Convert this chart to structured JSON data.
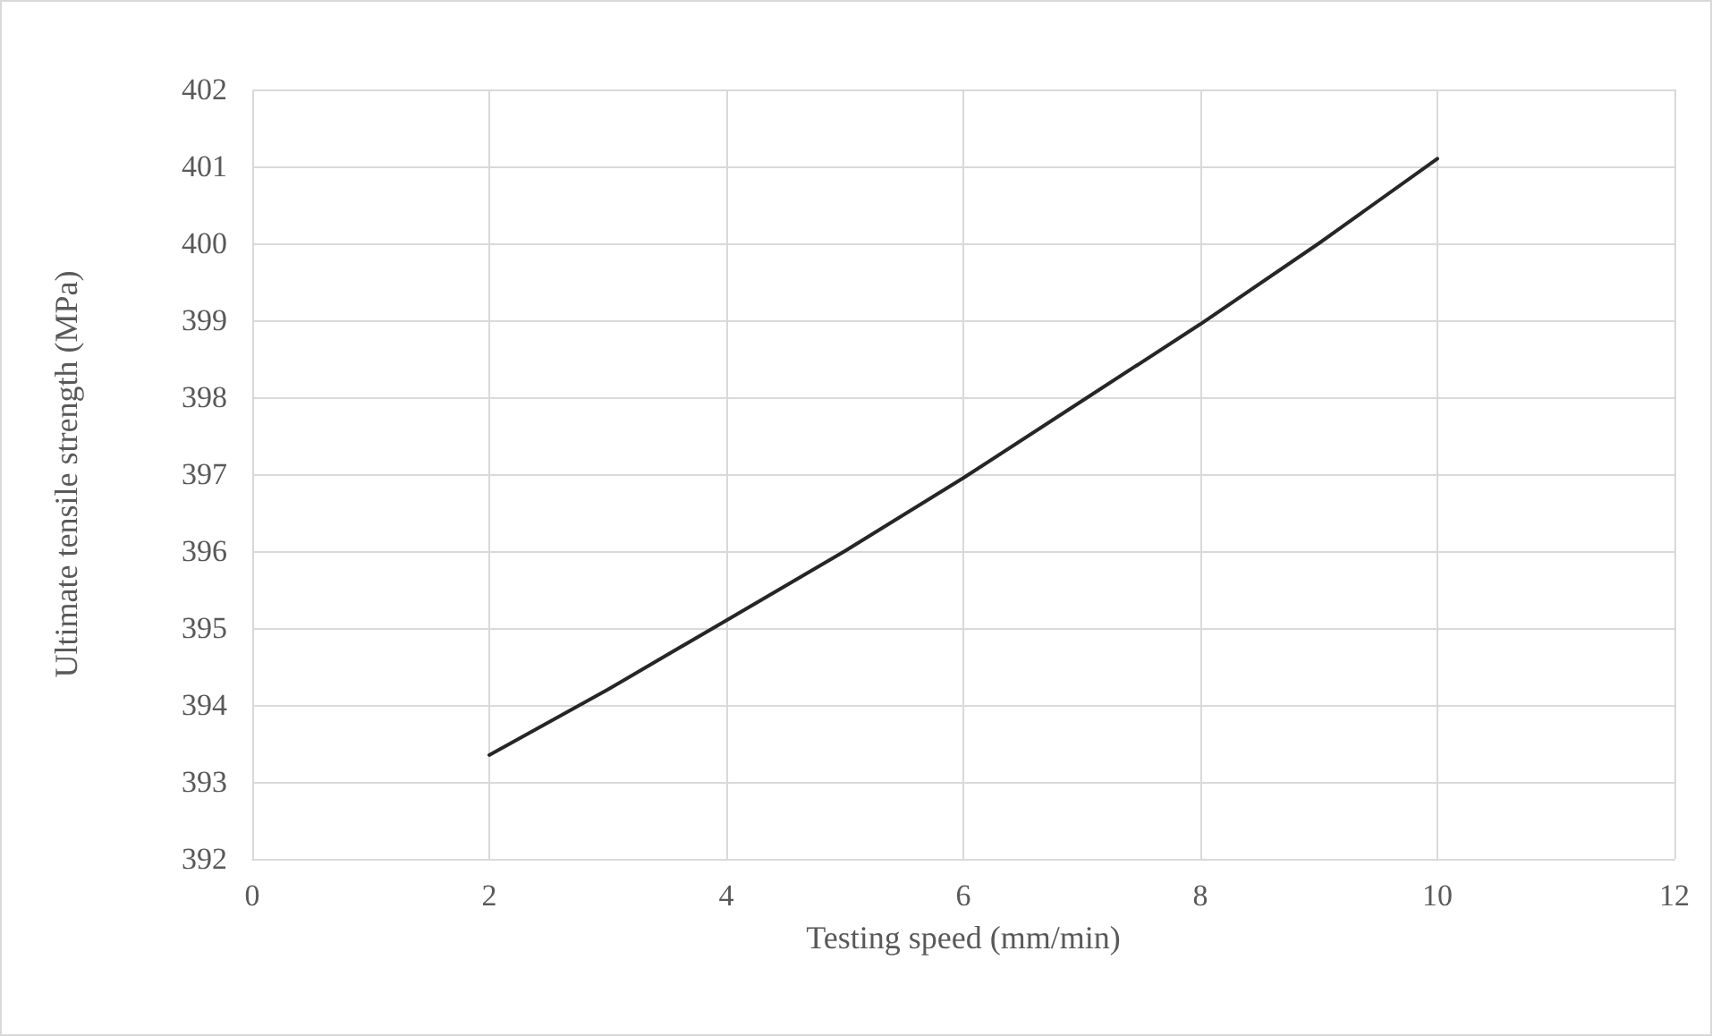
{
  "chart_data": {
    "type": "line",
    "xlabel": "Testing speed (mm/min)",
    "ylabel": "Ultimate tensile strength (MPa)",
    "x": [
      2,
      3,
      4,
      5,
      6,
      7,
      8,
      9,
      10
    ],
    "series": [
      {
        "color": "#262626",
        "values": [
          393.35,
          394.2,
          395.1,
          396.0,
          396.95,
          397.95,
          398.95,
          400.0,
          401.1
        ]
      }
    ],
    "xlim": [
      0,
      12
    ],
    "xticks": [
      0,
      2,
      4,
      6,
      8,
      10,
      12
    ],
    "ylim": [
      392,
      402
    ],
    "yticks": [
      392,
      393,
      394,
      395,
      396,
      397,
      398,
      399,
      400,
      401,
      402
    ],
    "grid": true,
    "marker": "none",
    "line_style": "solid"
  }
}
